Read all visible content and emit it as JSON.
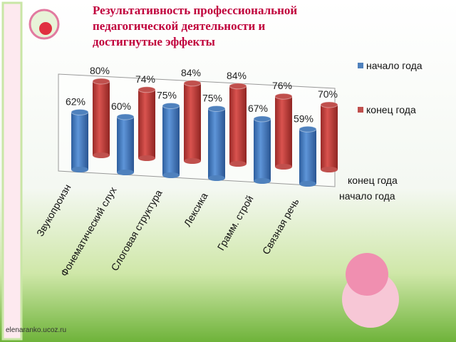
{
  "chart_data": {
    "type": "bar",
    "title": "Результативность профессиональной педагогической деятельности и достигнутые эффекты",
    "source": "elenaranko.ucoz.ru",
    "categories": [
      "Звукопроизн",
      "Фонематический слух",
      "Слоговая структура",
      "Лексика",
      "Грамм. строй",
      "Связная речь"
    ],
    "series": [
      {
        "name": "начало года",
        "color": "#4f81bd",
        "values": [
          62,
          60,
          75,
          75,
          67,
          59
        ],
        "value_labels": [
          "62%",
          "60%",
          "75%",
          "75%",
          "67%",
          "59%"
        ]
      },
      {
        "name": "конец года",
        "color": "#c0504d",
        "values": [
          80,
          74,
          84,
          84,
          76,
          70
        ],
        "value_labels": [
          "80%",
          "74%",
          "84%",
          "84%",
          "76%",
          "70%"
        ]
      }
    ],
    "ylim": [
      0,
      100
    ]
  }
}
